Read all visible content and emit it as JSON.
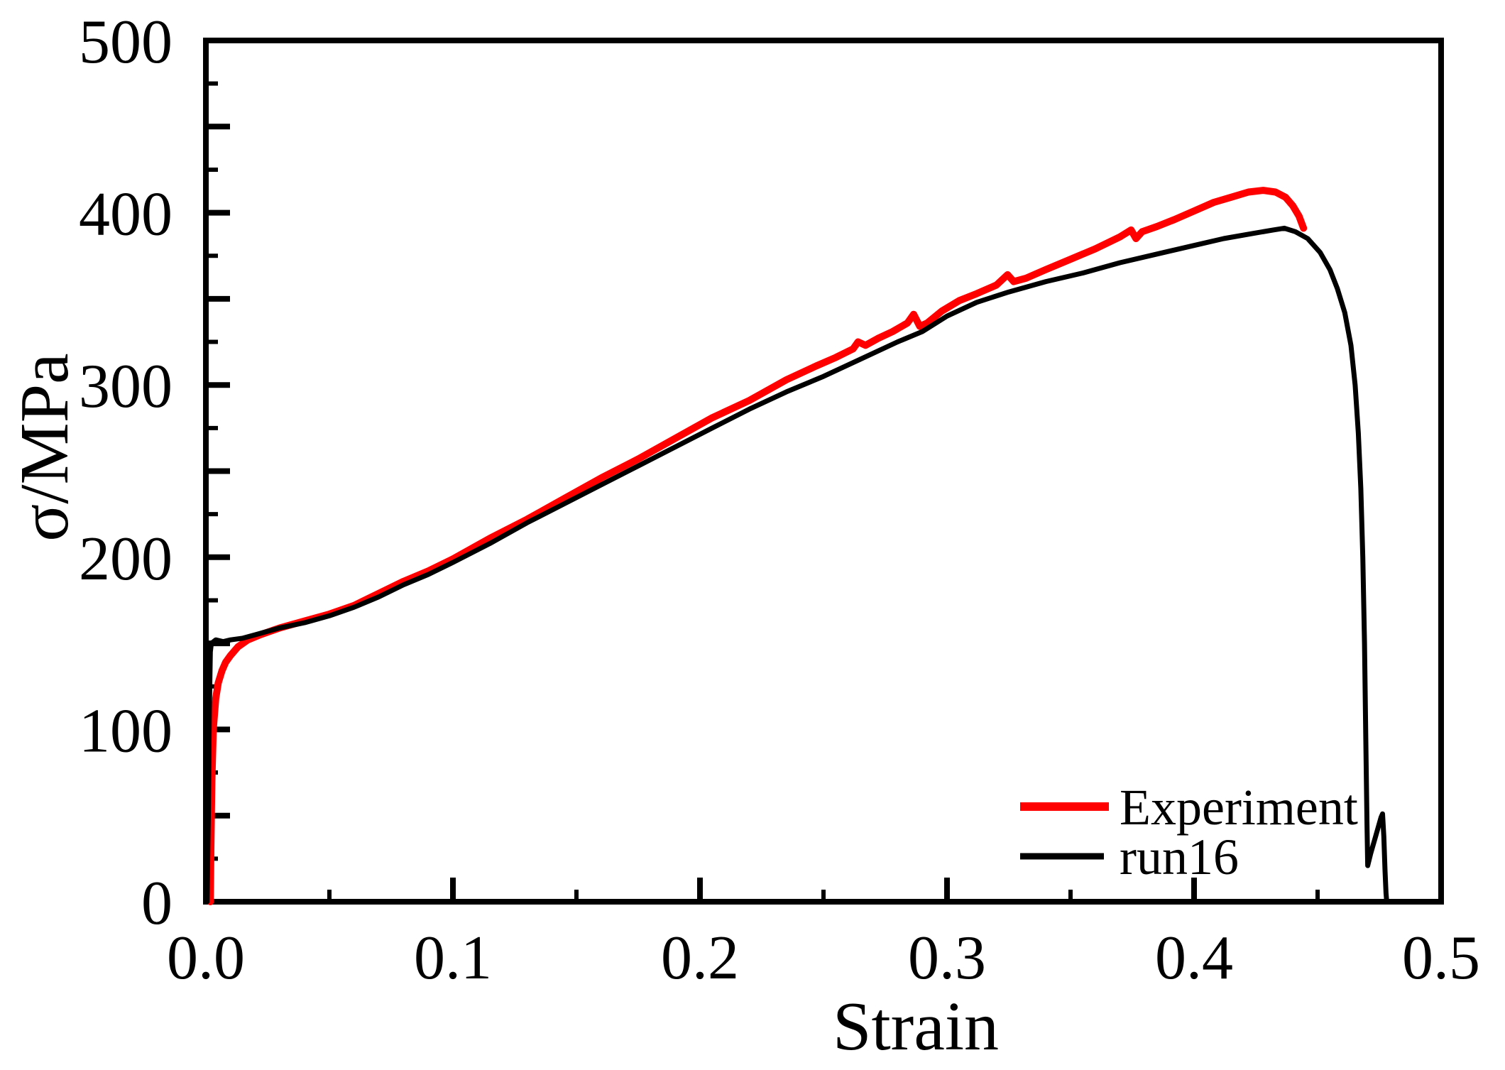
{
  "figure": {
    "background": "#ffffff",
    "frame_color": "#000000"
  },
  "axes": {
    "x": {
      "label": "Strain",
      "min": 0.0,
      "max": 0.5,
      "major_ticks": [
        0.0,
        0.1,
        0.2,
        0.3,
        0.4,
        0.5
      ],
      "tick_labels": [
        "0.0",
        "0.1",
        "0.2",
        "0.3",
        "0.4",
        "0.5"
      ],
      "minor_step": 0.05
    },
    "y": {
      "label": "σ/MPa",
      "min": 0,
      "max": 500,
      "labeled_ticks": [
        0,
        100,
        200,
        300,
        400,
        500
      ],
      "tick_labels": [
        "0",
        "100",
        "200",
        "300",
        "400",
        "500"
      ],
      "long_tick_step": 50,
      "short_tick_step": 25
    }
  },
  "legend": {
    "items": [
      {
        "label": "Experiment",
        "color": "#ff0000"
      },
      {
        "label": "run16",
        "color": "#000000"
      }
    ]
  },
  "chart_data": {
    "type": "line",
    "title": "",
    "xlabel": "Strain",
    "ylabel": "σ/MPa",
    "xlim": [
      0.0,
      0.5
    ],
    "ylim": [
      0,
      500
    ],
    "grid": "off",
    "legend_position": "lower right inside, no frame",
    "series": [
      {
        "name": "Experiment",
        "color": "#ff0000",
        "line_width": 10,
        "points": [
          [
            0.0018,
            0
          ],
          [
            0.002,
            30
          ],
          [
            0.0024,
            70
          ],
          [
            0.003,
            100
          ],
          [
            0.004,
            118
          ],
          [
            0.005,
            127
          ],
          [
            0.0065,
            134
          ],
          [
            0.008,
            139
          ],
          [
            0.01,
            143
          ],
          [
            0.013,
            148
          ],
          [
            0.017,
            152
          ],
          [
            0.022,
            155
          ],
          [
            0.03,
            159
          ],
          [
            0.04,
            163
          ],
          [
            0.05,
            167
          ],
          [
            0.06,
            172
          ],
          [
            0.07,
            179
          ],
          [
            0.08,
            186
          ],
          [
            0.09,
            192
          ],
          [
            0.1,
            199
          ],
          [
            0.115,
            211
          ],
          [
            0.13,
            222
          ],
          [
            0.145,
            234
          ],
          [
            0.16,
            246
          ],
          [
            0.175,
            257
          ],
          [
            0.19,
            269
          ],
          [
            0.205,
            281
          ],
          [
            0.22,
            291
          ],
          [
            0.235,
            303
          ],
          [
            0.247,
            311
          ],
          [
            0.255,
            316
          ],
          [
            0.262,
            321
          ],
          [
            0.264,
            325
          ],
          [
            0.267,
            323
          ],
          [
            0.272,
            327
          ],
          [
            0.278,
            331
          ],
          [
            0.284,
            336
          ],
          [
            0.2865,
            341
          ],
          [
            0.289,
            334
          ],
          [
            0.292,
            336
          ],
          [
            0.298,
            343
          ],
          [
            0.305,
            349
          ],
          [
            0.312,
            353
          ],
          [
            0.32,
            358
          ],
          [
            0.3245,
            364
          ],
          [
            0.327,
            360
          ],
          [
            0.332,
            362
          ],
          [
            0.34,
            367
          ],
          [
            0.35,
            373
          ],
          [
            0.36,
            379
          ],
          [
            0.37,
            386
          ],
          [
            0.3745,
            390
          ],
          [
            0.3765,
            385
          ],
          [
            0.379,
            389
          ],
          [
            0.385,
            392
          ],
          [
            0.392,
            396
          ],
          [
            0.4,
            401
          ],
          [
            0.408,
            406
          ],
          [
            0.415,
            409
          ],
          [
            0.422,
            412
          ],
          [
            0.428,
            413
          ],
          [
            0.433,
            412
          ],
          [
            0.437,
            409
          ],
          [
            0.44,
            404
          ],
          [
            0.4425,
            398
          ],
          [
            0.4443,
            391
          ]
        ]
      },
      {
        "name": "run16",
        "color": "#000000",
        "line_width": 7,
        "points": [
          [
            0.0005,
            0
          ],
          [
            0.001,
            50
          ],
          [
            0.0014,
            110
          ],
          [
            0.0018,
            145
          ],
          [
            0.0022,
            150
          ],
          [
            0.004,
            152
          ],
          [
            0.007,
            151
          ],
          [
            0.01,
            152
          ],
          [
            0.015,
            153
          ],
          [
            0.02,
            155
          ],
          [
            0.03,
            159
          ],
          [
            0.04,
            162
          ],
          [
            0.05,
            166
          ],
          [
            0.06,
            171
          ],
          [
            0.07,
            177
          ],
          [
            0.08,
            184
          ],
          [
            0.09,
            190
          ],
          [
            0.1,
            197
          ],
          [
            0.115,
            208
          ],
          [
            0.13,
            220
          ],
          [
            0.145,
            231
          ],
          [
            0.16,
            242
          ],
          [
            0.175,
            253
          ],
          [
            0.19,
            264
          ],
          [
            0.205,
            275
          ],
          [
            0.22,
            286
          ],
          [
            0.235,
            296
          ],
          [
            0.25,
            305
          ],
          [
            0.265,
            315
          ],
          [
            0.28,
            325
          ],
          [
            0.29,
            331
          ],
          [
            0.3,
            340
          ],
          [
            0.312,
            348
          ],
          [
            0.325,
            354
          ],
          [
            0.34,
            360
          ],
          [
            0.355,
            365
          ],
          [
            0.37,
            371
          ],
          [
            0.385,
            376
          ],
          [
            0.4,
            381
          ],
          [
            0.412,
            385
          ],
          [
            0.424,
            388
          ],
          [
            0.432,
            390
          ],
          [
            0.4365,
            391
          ],
          [
            0.441,
            389
          ],
          [
            0.446,
            385
          ],
          [
            0.451,
            377
          ],
          [
            0.455,
            367
          ],
          [
            0.458,
            356
          ],
          [
            0.461,
            342
          ],
          [
            0.4635,
            323
          ],
          [
            0.4652,
            300
          ],
          [
            0.4665,
            272
          ],
          [
            0.4675,
            240
          ],
          [
            0.4683,
            200
          ],
          [
            0.469,
            150
          ],
          [
            0.4695,
            95
          ],
          [
            0.47,
            45
          ],
          [
            0.4703,
            21
          ],
          [
            0.4715,
            28
          ],
          [
            0.4735,
            38
          ],
          [
            0.4757,
            49
          ],
          [
            0.4763,
            51
          ],
          [
            0.4768,
            38
          ],
          [
            0.4773,
            18
          ],
          [
            0.4777,
            5
          ],
          [
            0.478,
            0
          ]
        ]
      }
    ]
  }
}
